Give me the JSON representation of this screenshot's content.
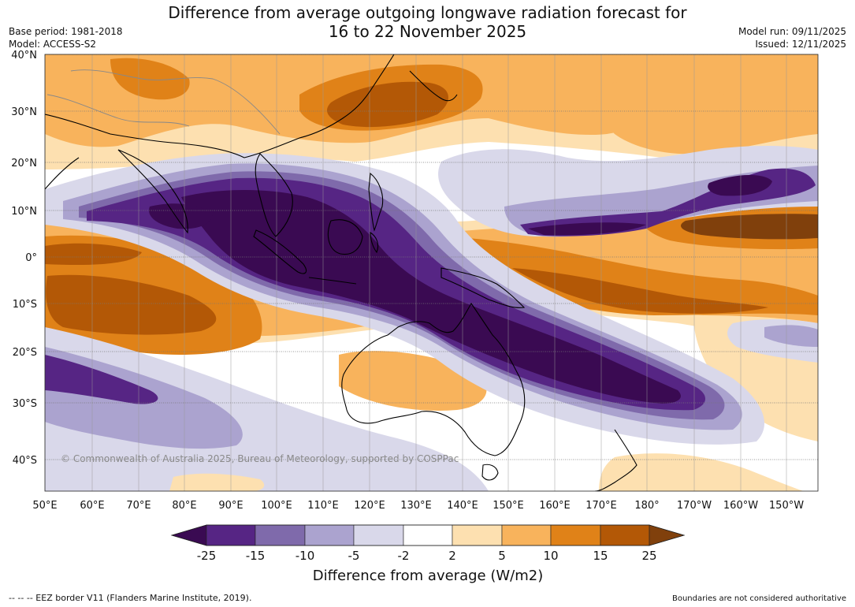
{
  "header": {
    "title_line1": "Difference from average outgoing longwave radiation forecast for",
    "title_line2": "16 to 22 November 2025",
    "base_period": "Base period: 1981-2018",
    "model": "Model: ACCESS-S2",
    "model_run": "Model run: 09/11/2025",
    "issued": "Issued: 12/11/2025"
  },
  "map": {
    "copyright": "© Commonwealth of Australia 2025, Bureau of Meteorology, supported by COSPPac",
    "lat_labels": [
      "40°N",
      "30°N",
      "20°N",
      "10°N",
      "0°",
      "10°S",
      "20°S",
      "30°S",
      "40°S"
    ],
    "lon_labels": [
      "50°E",
      "60°E",
      "70°E",
      "80°E",
      "90°E",
      "100°E",
      "110°E",
      "120°E",
      "130°E",
      "140°E",
      "150°E",
      "160°E",
      "170°E",
      "180°",
      "170°W",
      "160°W",
      "150°W"
    ]
  },
  "colorbar": {
    "ticks": [
      "-25",
      "-15",
      "-10",
      "-5",
      "-2",
      "2",
      "5",
      "10",
      "15",
      "25"
    ],
    "colors": [
      "#3a0a52",
      "#562584",
      "#7f6aab",
      "#aba3cf",
      "#d9d8ea",
      "#ffffff",
      "#fde0b0",
      "#f8b35c",
      "#e08218",
      "#b35806",
      "#80400c"
    ],
    "title": "Difference from average (W/m2)"
  },
  "footer": {
    "eez_legend": "--  --  -- EEZ border V11 (Flanders Marine Institute, 2019).",
    "boundaries_note": "Boundaries are not considered authoritative"
  }
}
